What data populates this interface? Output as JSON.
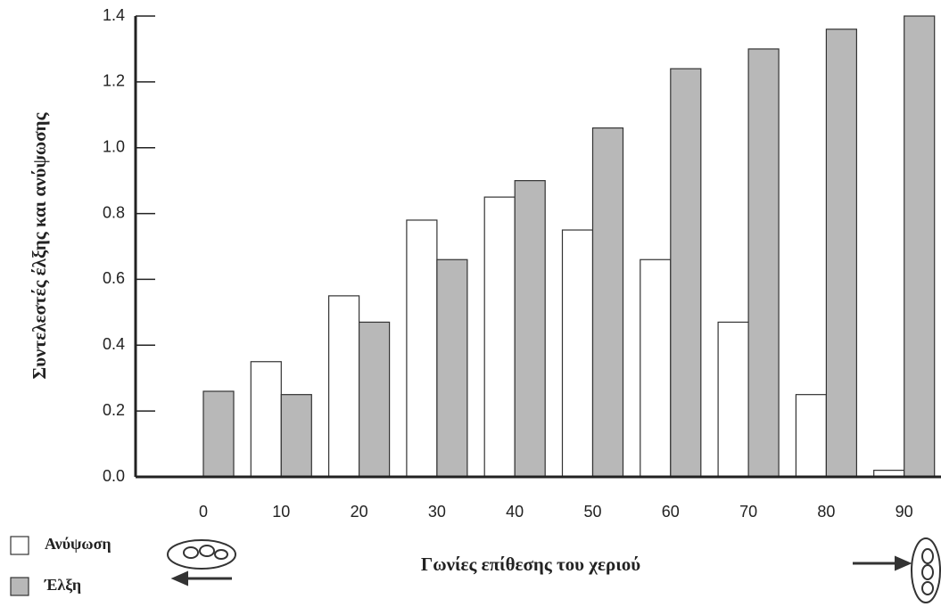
{
  "chart_data": {
    "type": "bar",
    "x_label": "Γωνίες επίθεσης του χεριού",
    "y_label": "Συντελεστές έλξης και ανύψωσης",
    "categories": [
      "0",
      "10",
      "20",
      "30",
      "40",
      "50",
      "60",
      "70",
      "80",
      "90"
    ],
    "series": [
      {
        "name": "Ανύψωση",
        "color": "#ffffff",
        "values": [
          0,
          0.35,
          0.55,
          0.78,
          0.85,
          0.75,
          0.66,
          0.47,
          0.25,
          0.02
        ]
      },
      {
        "name": "Έλξη",
        "color": "#b8b8b8",
        "values": [
          0.26,
          0.25,
          0.47,
          0.66,
          0.9,
          1.06,
          1.24,
          1.3,
          1.36,
          1.4
        ]
      }
    ],
    "ylim": [
      0,
      1.4
    ],
    "yticks": [
      {
        "value": 0,
        "label": "0.0"
      },
      0.2,
      0.4,
      0.6,
      0.8,
      {
        "value": 1,
        "label": "1.0"
      },
      1.2,
      1.4
    ]
  }
}
